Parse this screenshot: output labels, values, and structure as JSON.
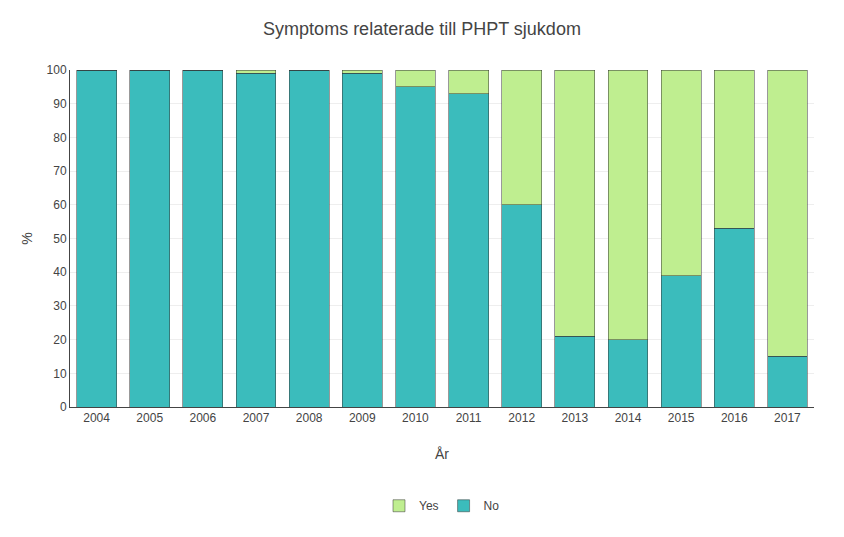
{
  "chart_data": {
    "type": "bar",
    "title": "Symptoms relaterade till PHPT sjukdom",
    "xlabel": "År",
    "ylabel": "%",
    "categories": [
      "2004",
      "2005",
      "2006",
      "2007",
      "2008",
      "2009",
      "2010",
      "2011",
      "2012",
      "2013",
      "2014",
      "2015",
      "2016",
      "2017"
    ],
    "series": [
      {
        "name": "No",
        "color": "#3BBCBC",
        "values": [
          100,
          100,
          100,
          99,
          100,
          99,
          95,
          93,
          60,
          21,
          20,
          39,
          53,
          15
        ]
      },
      {
        "name": "Yes",
        "color": "#BFEE90",
        "values": [
          0,
          0,
          0,
          1,
          0,
          1,
          5,
          7,
          40,
          79,
          80,
          61,
          47,
          85
        ]
      }
    ],
    "stacked": true,
    "ylim": [
      0,
      100
    ],
    "yticks": [
      0,
      10,
      20,
      30,
      40,
      50,
      60,
      70,
      80,
      90,
      100
    ],
    "grid": true,
    "legend": "bottom"
  }
}
